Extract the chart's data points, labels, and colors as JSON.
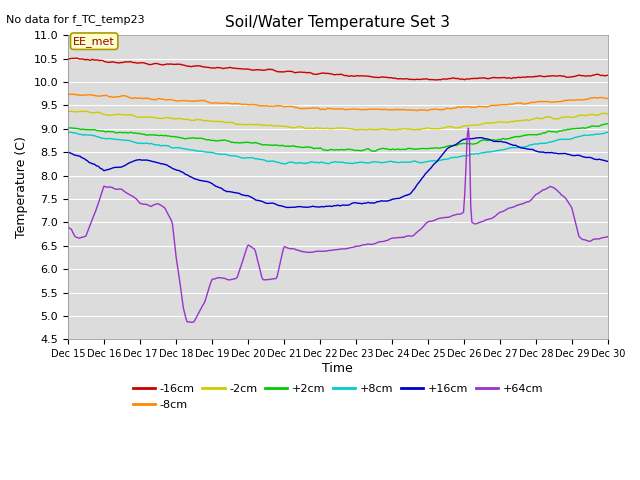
{
  "title": "Soil/Water Temperature Set 3",
  "subtitle": "No data for f_TC_temp23",
  "ylabel": "Temperature (C)",
  "xlabel": "Time",
  "annotation": "EE_met",
  "ylim": [
    4.5,
    11.0
  ],
  "yticks": [
    4.5,
    5.0,
    5.5,
    6.0,
    6.5,
    7.0,
    7.5,
    8.0,
    8.5,
    9.0,
    9.5,
    10.0,
    10.5,
    11.0
  ],
  "bg_color": "#dcdcdc",
  "series": [
    {
      "label": "-16cm",
      "color": "#cc0000"
    },
    {
      "label": "-8cm",
      "color": "#ff8800"
    },
    {
      "label": "-2cm",
      "color": "#cccc00"
    },
    {
      "label": "+2cm",
      "color": "#00cc00"
    },
    {
      "label": "+8cm",
      "color": "#00cccc"
    },
    {
      "label": "+16cm",
      "color": "#0000cc"
    },
    {
      "label": "+64cm",
      "color": "#9933cc"
    }
  ],
  "n_points": 450,
  "xstart": 15,
  "xend": 30,
  "xtick_labels": [
    "Dec 15",
    "Dec 16",
    "Dec 17",
    "Dec 18",
    "Dec 19",
    "Dec 20",
    "Dec 21",
    "Dec 22",
    "Dec 23",
    "Dec 24",
    "Dec 25",
    "Dec 26",
    "Dec 27",
    "Dec 28",
    "Dec 29",
    "Dec 30"
  ]
}
